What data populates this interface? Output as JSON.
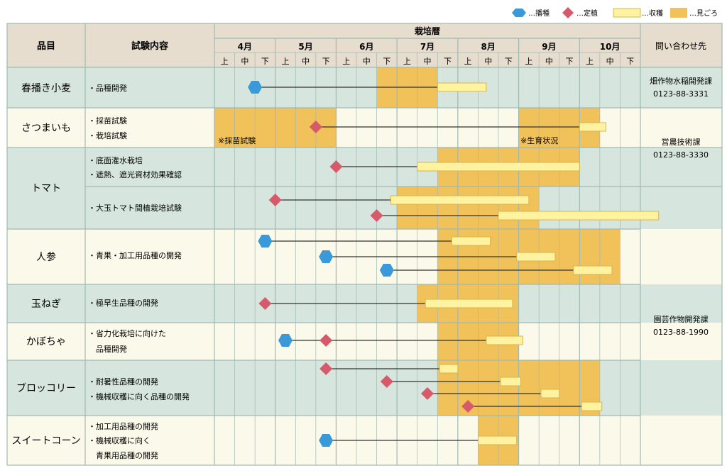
{
  "legend": {
    "sow": "…播種",
    "plant": "…定植",
    "harvest": "…収穫",
    "season": "…見ごろ"
  },
  "header": {
    "item": "品目",
    "content": "試験内容",
    "calendar": "栽培暦",
    "contact": "問い合わせ先"
  },
  "months": [
    "4月",
    "5月",
    "6月",
    "7月",
    "8月",
    "9月",
    "10月"
  ],
  "periods": [
    "上",
    "中",
    "下"
  ],
  "colors": {
    "header_bg": "#e6ddce",
    "row_alt_green": "#d6e6de",
    "row_alt_cream": "#fbf9ea",
    "season": "#f1c15a",
    "harvest_fill": "#fff2a0",
    "harvest_border": "#d9b548",
    "sow": "#3a9ad9",
    "plant": "#d65a6a",
    "line": "#333333",
    "grid": "#9fb9b2"
  },
  "crops": [
    {
      "name": "春播き小麦",
      "band": "green",
      "contents": [
        "・品種開発"
      ],
      "contact": [
        "畑作物水稲開発課",
        "0123-88-3331"
      ]
    },
    {
      "name": "さつまいも",
      "band": "cream",
      "contents": [
        "・採苗試験",
        "・栽培試験"
      ],
      "notes": [
        "※採苗試験",
        "※生育状況"
      ],
      "contact": [
        "営農技術課",
        "0123-88-3330"
      ]
    },
    {
      "name": "トマト",
      "band": "green",
      "contents": [
        "・底面潅水栽培",
        "・遮熱、遮光資材効果確認"
      ],
      "contents2": [
        "・大玉トマト間植栽培試験"
      ]
    },
    {
      "name": "人参",
      "band": "cream",
      "contents": [
        "・青果・加工用品種の開発"
      ],
      "contact": [
        "園芸作物開発課",
        "0123-88-1990"
      ]
    },
    {
      "name": "玉ねぎ",
      "band": "green",
      "contents": [
        "・極早生品種の開発"
      ]
    },
    {
      "name": "かぼちゃ",
      "band": "cream",
      "contents": [
        "・省力化栽培に向けた",
        "　品種開発"
      ]
    },
    {
      "name": "ブロッコリー",
      "band": "green",
      "contents": [
        "・耐暑性品種の開発",
        "・機械収穫に向く品種の開発"
      ]
    },
    {
      "name": "スイートコーン",
      "band": "cream",
      "contents": [
        "・加工用品種の開発",
        "・機械収穫に向く",
        "　青果用品種の開発"
      ]
    }
  ],
  "chart_data": {
    "type": "gantt",
    "x_axis": "栽培暦",
    "x_units": "旬 (4月上 = 0, 10月下 = 21)",
    "seasons": [
      {
        "crop": "春播き小麦",
        "start": 8,
        "end": 11
      },
      {
        "crop": "さつまいも",
        "start": 0,
        "end": 6
      },
      {
        "crop": "さつまいも",
        "start": 15,
        "end": 19
      },
      {
        "crop": "トマト(底面潅水栽培)",
        "start": 11,
        "end": 18
      },
      {
        "crop": "トマト(大玉トマト間植栽培試験)",
        "start": 9,
        "end": 16
      },
      {
        "crop": "人参",
        "start": 11,
        "end": 20
      },
      {
        "crop": "玉ねぎ",
        "start": 10,
        "end": 15
      },
      {
        "crop": "かぼちゃ",
        "start": 11,
        "end": 15
      },
      {
        "crop": "ブロッコリー",
        "start": 11,
        "end": 19
      },
      {
        "crop": "スイートコーン",
        "start": 13,
        "end": 15
      }
    ],
    "tracks": [
      {
        "crop": "春播き小麦",
        "start_type": "sow",
        "start": 2.0,
        "harvest": [
          11.0,
          13.4
        ]
      },
      {
        "crop": "さつまいも",
        "start_type": "plant",
        "start": 5.0,
        "harvest": [
          18.0,
          19.3
        ]
      },
      {
        "crop": "トマト",
        "start_type": "plant",
        "start": 6.0,
        "harvest": [
          10.0,
          18.0
        ]
      },
      {
        "crop": "トマト",
        "start_type": "plant",
        "start": 3.0,
        "harvest": [
          8.7,
          15.5
        ]
      },
      {
        "crop": "トマト",
        "start_type": "plant",
        "start": 8.0,
        "harvest": [
          14.0,
          21.9
        ]
      },
      {
        "crop": "人参",
        "start_type": "sow",
        "start": 2.5,
        "harvest": [
          11.7,
          13.6
        ]
      },
      {
        "crop": "人参",
        "start_type": "sow",
        "start": 5.5,
        "harvest": [
          14.9,
          16.8
        ]
      },
      {
        "crop": "人参",
        "start_type": "sow",
        "start": 8.5,
        "harvest": [
          17.7,
          19.6
        ]
      },
      {
        "crop": "玉ねぎ",
        "start_type": "plant",
        "start": 2.5,
        "harvest": [
          10.4,
          14.7
        ]
      },
      {
        "crop": "かぼちゃ",
        "start_type": "sow",
        "start": 3.5,
        "harvest": [
          13.4,
          15.2
        ]
      },
      {
        "crop": "かぼちゃ",
        "start_type": "plant",
        "start": 5.5
      },
      {
        "crop": "ブロッコリー",
        "start_type": "plant",
        "start": 5.5,
        "harvest": [
          11.1,
          12.0
        ]
      },
      {
        "crop": "ブロッコリー",
        "start_type": "plant",
        "start": 8.5,
        "harvest": [
          14.1,
          15.1
        ]
      },
      {
        "crop": "ブロッコリー",
        "start_type": "plant",
        "start": 10.5,
        "harvest": [
          16.1,
          17.0
        ]
      },
      {
        "crop": "ブロッコリー",
        "start_type": "plant",
        "start": 12.5,
        "harvest": [
          18.1,
          19.1
        ]
      },
      {
        "crop": "スイートコーン",
        "start_type": "sow",
        "start": 5.5,
        "harvest": [
          13.0,
          14.9
        ]
      }
    ]
  }
}
